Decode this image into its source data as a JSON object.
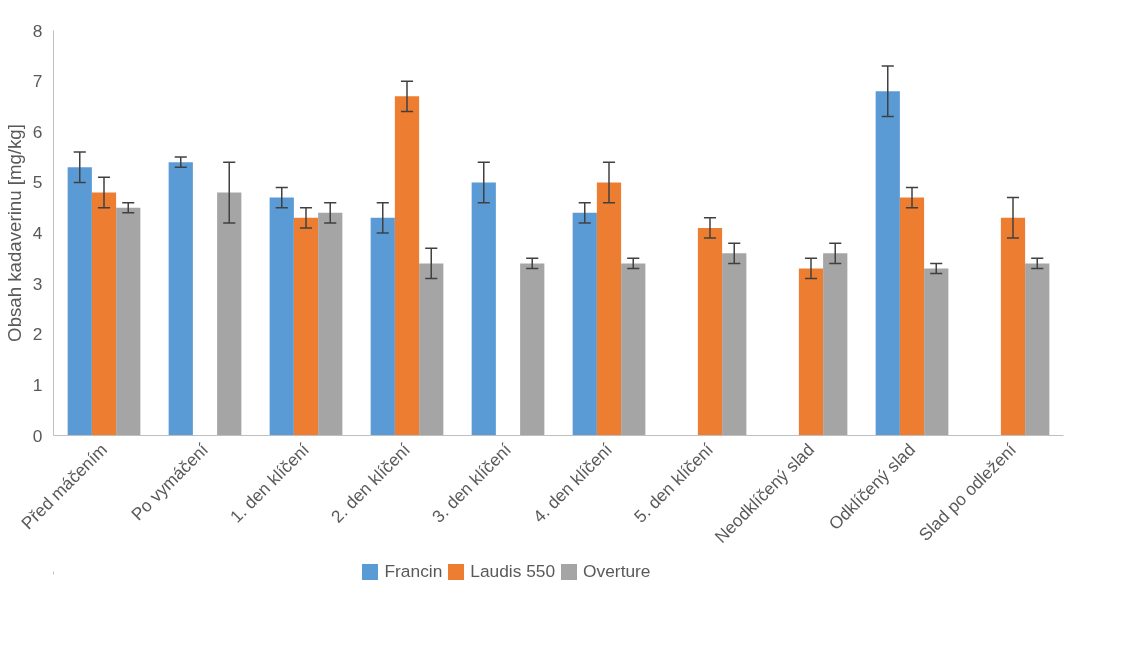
{
  "chart_data": {
    "type": "bar",
    "ylabel": "Obsah kadaverinu [mg/kg]",
    "categories": [
      "Před máčením",
      "Po vymáčení",
      "1. den klíčení",
      "2. den klíčení",
      "3. den klíčení",
      "4. den klíčení",
      "5. den klíčení",
      "Neodklíčený slad",
      "Odklíčený slad",
      "Slad po odležení"
    ],
    "series": [
      {
        "name": "Francin",
        "color": "#5b9bd5",
        "values": [
          5.3,
          5.4,
          4.7,
          4.3,
          5.0,
          4.4,
          0,
          0,
          6.8,
          0
        ],
        "errors": [
          0.3,
          0.1,
          0.2,
          0.3,
          0.4,
          0.2,
          null,
          null,
          0.5,
          null
        ]
      },
      {
        "name": "Laudis 550",
        "color": "#ed7d31",
        "values": [
          4.8,
          0,
          4.3,
          6.7,
          0,
          5.0,
          4.1,
          3.3,
          4.7,
          4.3
        ],
        "errors": [
          0.3,
          null,
          0.2,
          0.3,
          null,
          0.4,
          0.2,
          0.2,
          0.2,
          0.4
        ]
      },
      {
        "name": "Overture",
        "color": "#a5a5a5",
        "values": [
          4.5,
          4.8,
          4.4,
          3.4,
          3.4,
          3.4,
          3.6,
          3.6,
          3.3,
          3.4
        ],
        "errors": [
          0.1,
          0.6,
          0.2,
          0.3,
          0.1,
          0.1,
          0.2,
          0.2,
          0.1,
          0.1
        ]
      }
    ],
    "ylim": [
      0,
      8
    ],
    "yticks": [
      0,
      1,
      2,
      3,
      4,
      5,
      6,
      7,
      8
    ],
    "grid": false,
    "legend": "bottom"
  }
}
